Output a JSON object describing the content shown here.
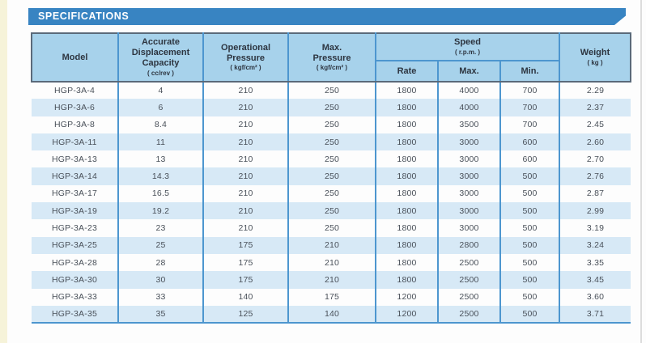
{
  "banner": {
    "title": "SPECIFICATIONS"
  },
  "colors": {
    "page_bg": "#fdfdfd",
    "banner_blue": "#3884c2",
    "header_bg": "#a7d2eb",
    "row_stripe": "#d7e9f6",
    "grid_blue": "#4d96cf",
    "header_rule": "#5a6a7a",
    "header_text": "#2d3540",
    "body_text": "#495059",
    "left_strip": "#f6f3d9",
    "page_edge": "#cfcfcf"
  },
  "table": {
    "columns": [
      {
        "label": "Model",
        "unit": ""
      },
      {
        "label": "Accurate Displacement Capacity",
        "unit": "( cc/rev )"
      },
      {
        "label": "Operational Pressure",
        "unit": "( kgf/cm² )"
      },
      {
        "label": "Max. Pressure",
        "unit": "( kgf/cm² )"
      },
      {
        "label": "Speed",
        "unit": "( r.p.m. )",
        "subcolumns": [
          "Rate",
          "Max.",
          "Min."
        ]
      },
      {
        "label": "Weight",
        "unit": "( kg )"
      }
    ],
    "column_keys": [
      "model",
      "displacement_capacity",
      "operational_pressure",
      "max_pressure",
      "speed_rate",
      "speed_max",
      "speed_min",
      "weight"
    ],
    "rows": [
      [
        "HGP-3A-4",
        "4",
        "210",
        "250",
        "1800",
        "4000",
        "700",
        "2.29"
      ],
      [
        "HGP-3A-6",
        "6",
        "210",
        "250",
        "1800",
        "4000",
        "700",
        "2.37"
      ],
      [
        "HGP-3A-8",
        "8.4",
        "210",
        "250",
        "1800",
        "3500",
        "700",
        "2.45"
      ],
      [
        "HGP-3A-11",
        "11",
        "210",
        "250",
        "1800",
        "3000",
        "600",
        "2.60"
      ],
      [
        "HGP-3A-13",
        "13",
        "210",
        "250",
        "1800",
        "3000",
        "600",
        "2.70"
      ],
      [
        "HGP-3A-14",
        "14.3",
        "210",
        "250",
        "1800",
        "3000",
        "500",
        "2.76"
      ],
      [
        "HGP-3A-17",
        "16.5",
        "210",
        "250",
        "1800",
        "3000",
        "500",
        "2.87"
      ],
      [
        "HGP-3A-19",
        "19.2",
        "210",
        "250",
        "1800",
        "3000",
        "500",
        "2.99"
      ],
      [
        "HGP-3A-23",
        "23",
        "210",
        "250",
        "1800",
        "3000",
        "500",
        "3.19"
      ],
      [
        "HGP-3A-25",
        "25",
        "175",
        "210",
        "1800",
        "2800",
        "500",
        "3.24"
      ],
      [
        "HGP-3A-28",
        "28",
        "175",
        "210",
        "1800",
        "2500",
        "500",
        "3.35"
      ],
      [
        "HGP-3A-30",
        "30",
        "175",
        "210",
        "1800",
        "2500",
        "500",
        "3.45"
      ],
      [
        "HGP-3A-33",
        "33",
        "140",
        "175",
        "1200",
        "2500",
        "500",
        "3.60"
      ],
      [
        "HGP-3A-35",
        "35",
        "125",
        "140",
        "1200",
        "2500",
        "500",
        "3.71"
      ]
    ]
  }
}
